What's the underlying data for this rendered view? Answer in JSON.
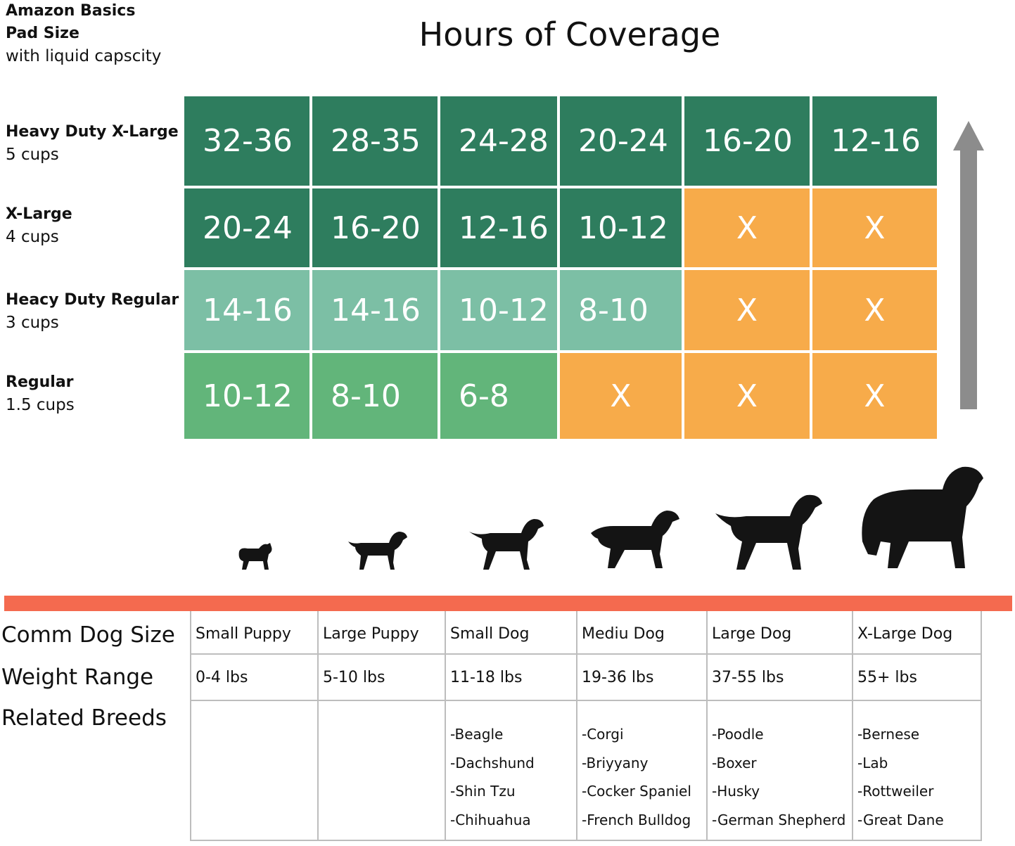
{
  "header": {
    "label_line1": "Amazon Basics",
    "label_line2": "Pad Size",
    "label_line3": "with liquid capscity",
    "title": "Hours of Coverage"
  },
  "rows": [
    {
      "name": "Heavy Duty X-Large",
      "capacity": "5 cups",
      "cells": [
        "32-36",
        "28-35",
        "24-28",
        "20-24",
        "16-20",
        "12-16"
      ]
    },
    {
      "name": "X-Large",
      "capacity": "4 cups",
      "cells": [
        "20-24",
        "16-20",
        "12-16",
        "10-12",
        "X",
        "X"
      ]
    },
    {
      "name": "Heacy Duty Regular",
      "capacity": "3 cups",
      "cells": [
        "14-16",
        "14-16",
        "10-12",
        "8-10",
        "X",
        "X"
      ]
    },
    {
      "name": "Regular",
      "capacity": "1.5 cups",
      "cells": [
        "10-12",
        "8-10",
        "6-8",
        "X",
        "X",
        "X"
      ]
    }
  ],
  "colors": {
    "dark_green": "#2e7d5e",
    "teal": "#7cbfa5",
    "green": "#62b57a",
    "orange": "#f7ab4a",
    "divider_red": "#f46a4f",
    "arrow_gray": "#8c8c8c"
  },
  "table": {
    "row_labels": [
      "Comm Dog Size",
      "Weight Range",
      "Related Breeds"
    ],
    "columns": [
      {
        "size": "Small Puppy",
        "weight": "0-4 lbs",
        "breeds": []
      },
      {
        "size": "Large Puppy",
        "weight": "5-10 lbs",
        "breeds": []
      },
      {
        "size": "Small Dog",
        "weight": "11-18 lbs",
        "breeds": [
          "-Beagle",
          "-Dachshund",
          "-Shin Tzu",
          "-Chihuahua"
        ]
      },
      {
        "size": "Mediu Dog",
        "weight": "19-36 lbs",
        "breeds": [
          "-Corgi",
          "-Briyyany",
          "-Cocker Spaniel",
          "-French Bulldog"
        ]
      },
      {
        "size": "Large Dog",
        "weight": "37-55 lbs",
        "breeds": [
          "-Poodle",
          "-Boxer",
          "-Husky",
          "-German Shepherd"
        ]
      },
      {
        "size": "X-Large Dog",
        "weight": "55+ lbs",
        "breeds": [
          "-Bernese",
          "-Lab",
          "-Rottweiler",
          "-Great Dane"
        ]
      }
    ]
  },
  "icons": {
    "arrow": "arrow-up-icon",
    "dogs": [
      "small-puppy-dog-icon",
      "large-puppy-dog-icon",
      "small-dog-icon",
      "medium-dog-icon",
      "large-dog-icon",
      "x-large-dog-icon"
    ]
  }
}
